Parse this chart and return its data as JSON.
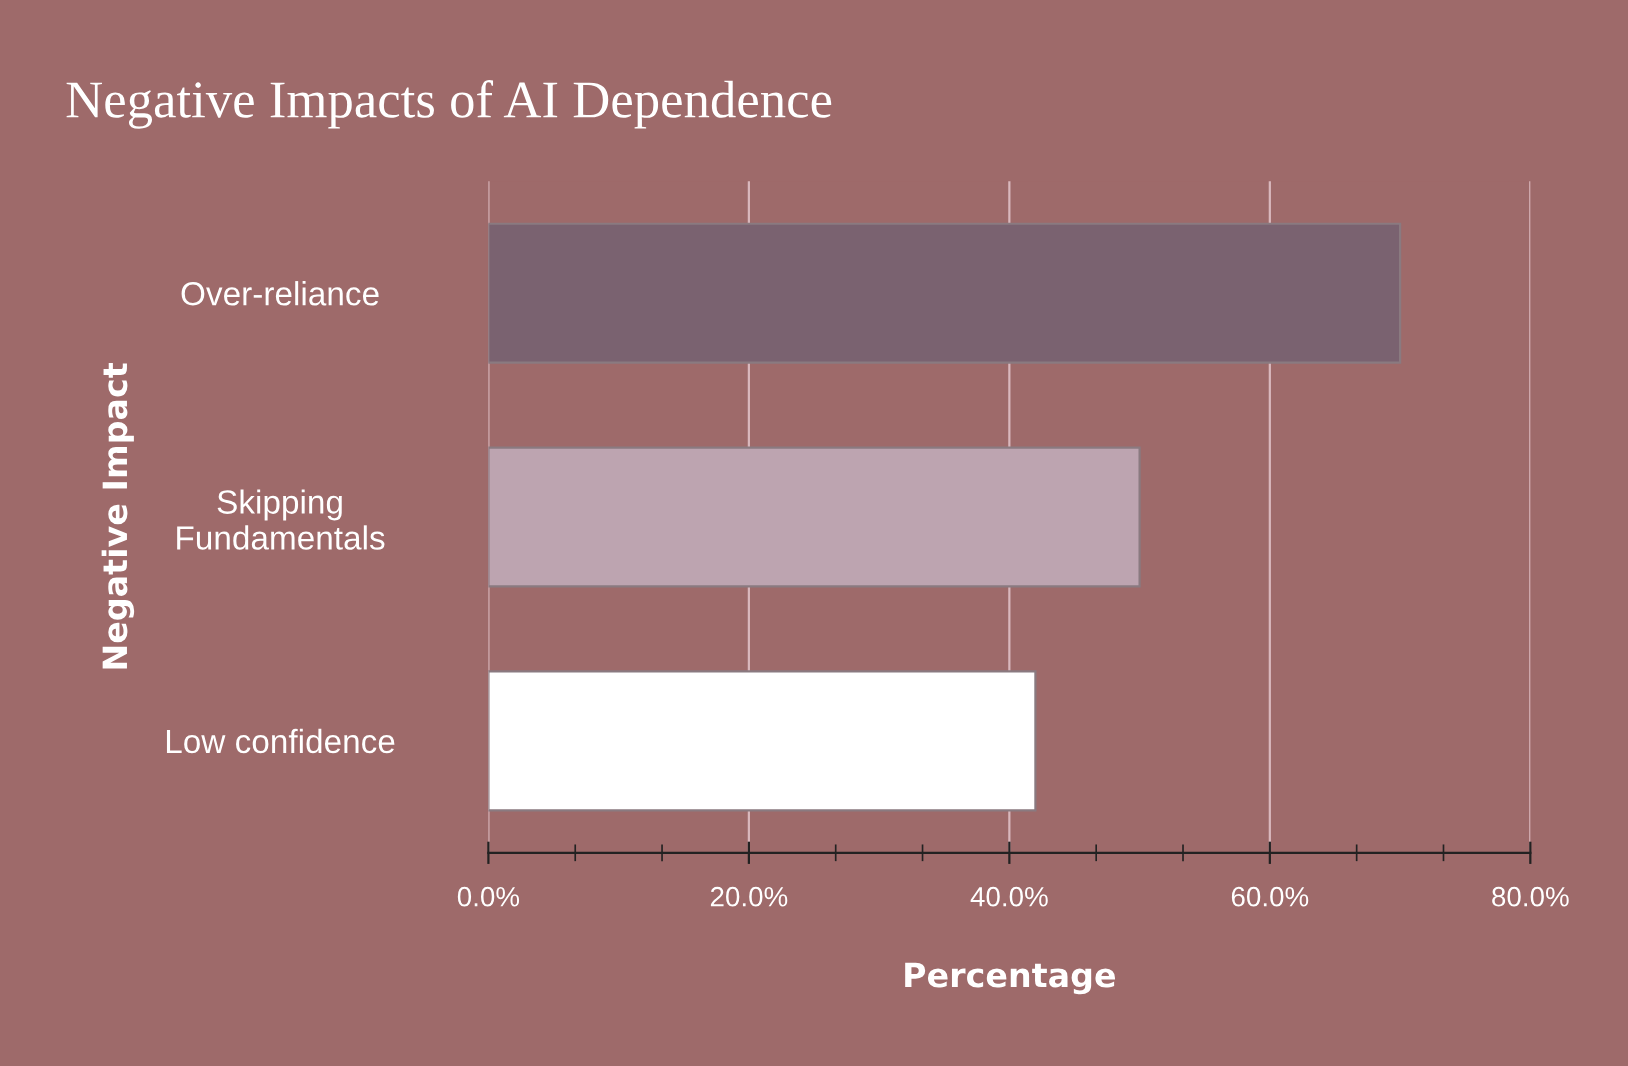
{
  "chart_data": {
    "type": "bar",
    "orientation": "horizontal",
    "title": "Negative Impacts of AI Dependence",
    "xlabel": "Percentage",
    "ylabel": "Negative Impact",
    "categories": [
      "Over-reliance",
      "Skipping\nFundamentals",
      "Low confidence"
    ],
    "values": [
      70,
      50,
      42
    ],
    "colors": [
      "#7a6270",
      "#bda4b0",
      "#ffffff"
    ],
    "xlim": [
      0,
      80
    ],
    "xticks": [
      {
        "value": 0,
        "label": "0.0%"
      },
      {
        "value": 20,
        "label": "20.0%"
      },
      {
        "value": 40,
        "label": "40.0%"
      },
      {
        "value": 60,
        "label": "60.0%"
      },
      {
        "value": 80,
        "label": "80.0%"
      }
    ],
    "grid": "x",
    "legend": false
  }
}
